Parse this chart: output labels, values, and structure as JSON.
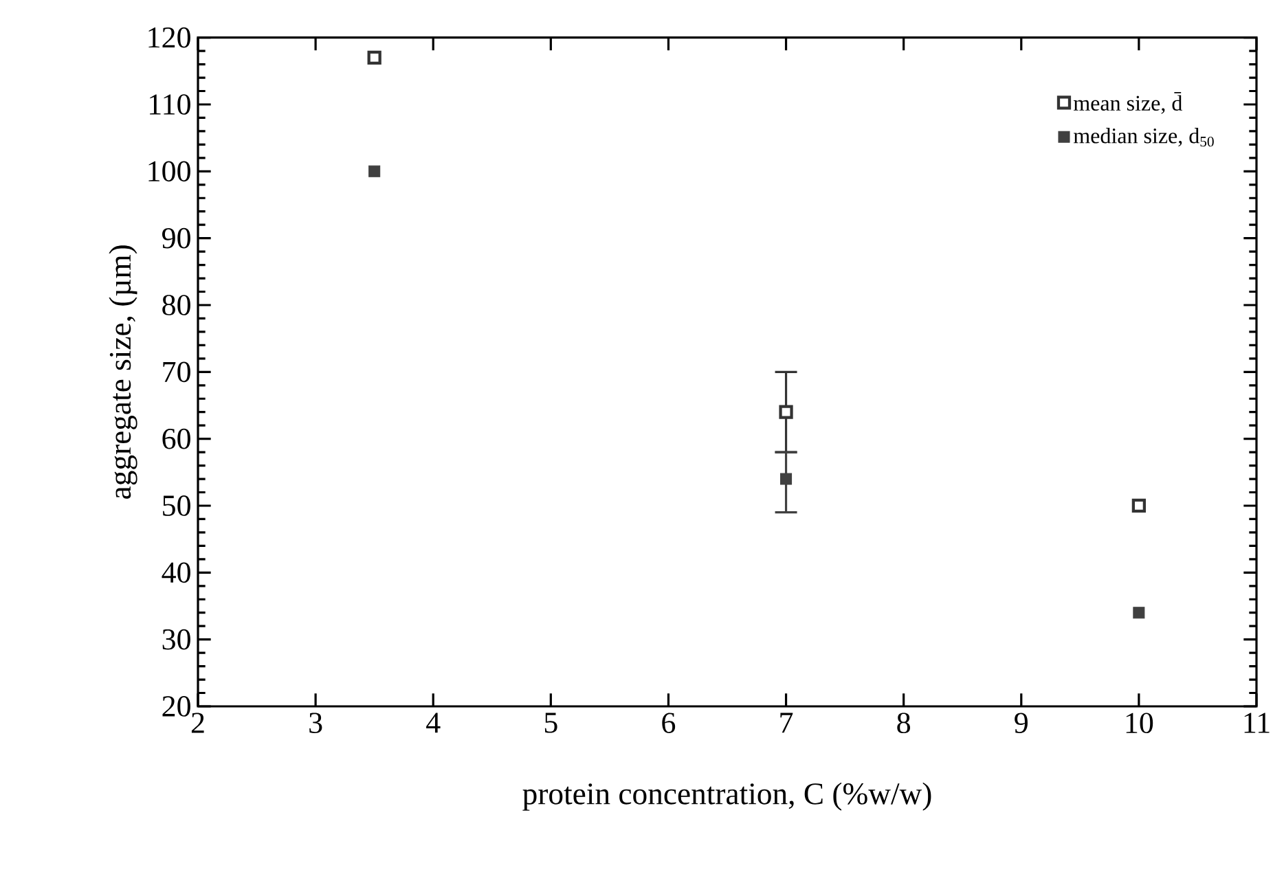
{
  "chart_data": {
    "type": "scatter",
    "xlabel": "protein concentration, C (%w/w)",
    "ylabel": "aggregate size, (µm)",
    "x": [
      3.5,
      7,
      10
    ],
    "series": [
      {
        "name": "mean size, d̄",
        "color": "#333333",
        "values": [
          117,
          64,
          50
        ],
        "errors": [
          null,
          6,
          null
        ]
      },
      {
        "name": "median size, d$_{50}$",
        "color": "#404040",
        "values": [
          100,
          54,
          34
        ],
        "errors": [
          null,
          [
            49,
            58
          ],
          null
        ]
      }
    ],
    "xlim": [
      2,
      11
    ],
    "xticks": [
      2,
      3,
      4,
      5,
      6,
      7,
      8,
      9,
      10,
      11
    ],
    "ylim": [
      20,
      120
    ],
    "yticks": [
      20,
      30,
      40,
      50,
      60,
      70,
      80,
      90,
      100,
      110,
      120
    ],
    "marker": "square",
    "legend": "top right",
    "grid": false
  }
}
